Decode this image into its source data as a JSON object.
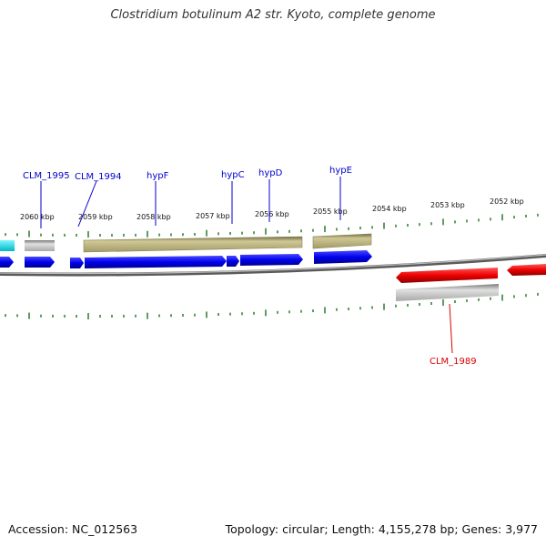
{
  "title": "Clostridium botulinum A2 str. Kyoto, complete genome",
  "footer": {
    "accession": "Accession: NC_012563",
    "info": "Topology: circular; Length: 4,155,278 bp; Genes: 3,977"
  },
  "ruler": {
    "labels": [
      "2060 kbp",
      "2059 kbp",
      "2058 kbp",
      "2057 kbp",
      "2056 kbp",
      "2055 kbp",
      "2054 kbp",
      "2053 kbp",
      "2052 kbp"
    ]
  },
  "gene_labels": [
    {
      "text": "CLM_1995",
      "color": "#0000cc"
    },
    {
      "text": "CLM_1994",
      "color": "#0000cc"
    },
    {
      "text": "hypF",
      "color": "#0000cc"
    },
    {
      "text": "hypC",
      "color": "#0000cc"
    },
    {
      "text": "hypD",
      "color": "#0000cc"
    },
    {
      "text": "hypE",
      "color": "#0000cc"
    },
    {
      "text": "CLM_1989",
      "color": "#dd0000"
    }
  ],
  "colors": {
    "forward_cds": "#0000ee",
    "reverse_cds": "#ee0000",
    "gene_bar": "#a8a070",
    "gene_bar_gray": "#b4b4b4",
    "rna": "#00d8e8",
    "tick": "#2a7a2a",
    "backbone": "#707070"
  }
}
